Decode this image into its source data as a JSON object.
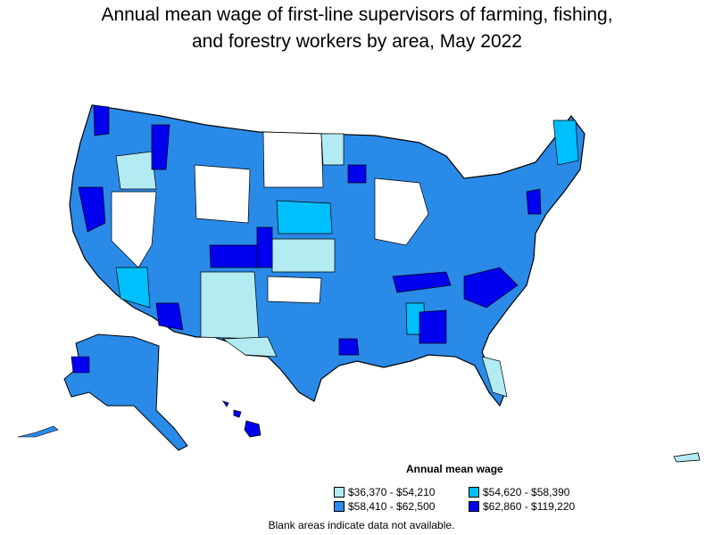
{
  "title_line1": "Annual mean wage of first-line supervisors of farming, fishing,",
  "title_line2": "and forestry workers by area, May 2022",
  "legend": {
    "title": "Annual mean wage",
    "items": [
      {
        "label": "$36,370 - $54,210",
        "color": "#b2ebf2"
      },
      {
        "label": "$54,620 - $58,390",
        "color": "#00bfff"
      },
      {
        "label": "$58,410 - $62,500",
        "color": "#2a8ae8"
      },
      {
        "label": "$62,860 - $119,220",
        "color": "#0000ee"
      }
    ]
  },
  "note": "Blank areas indicate data not available.",
  "colors": {
    "border": "#000000",
    "blank": "#ffffff"
  }
}
